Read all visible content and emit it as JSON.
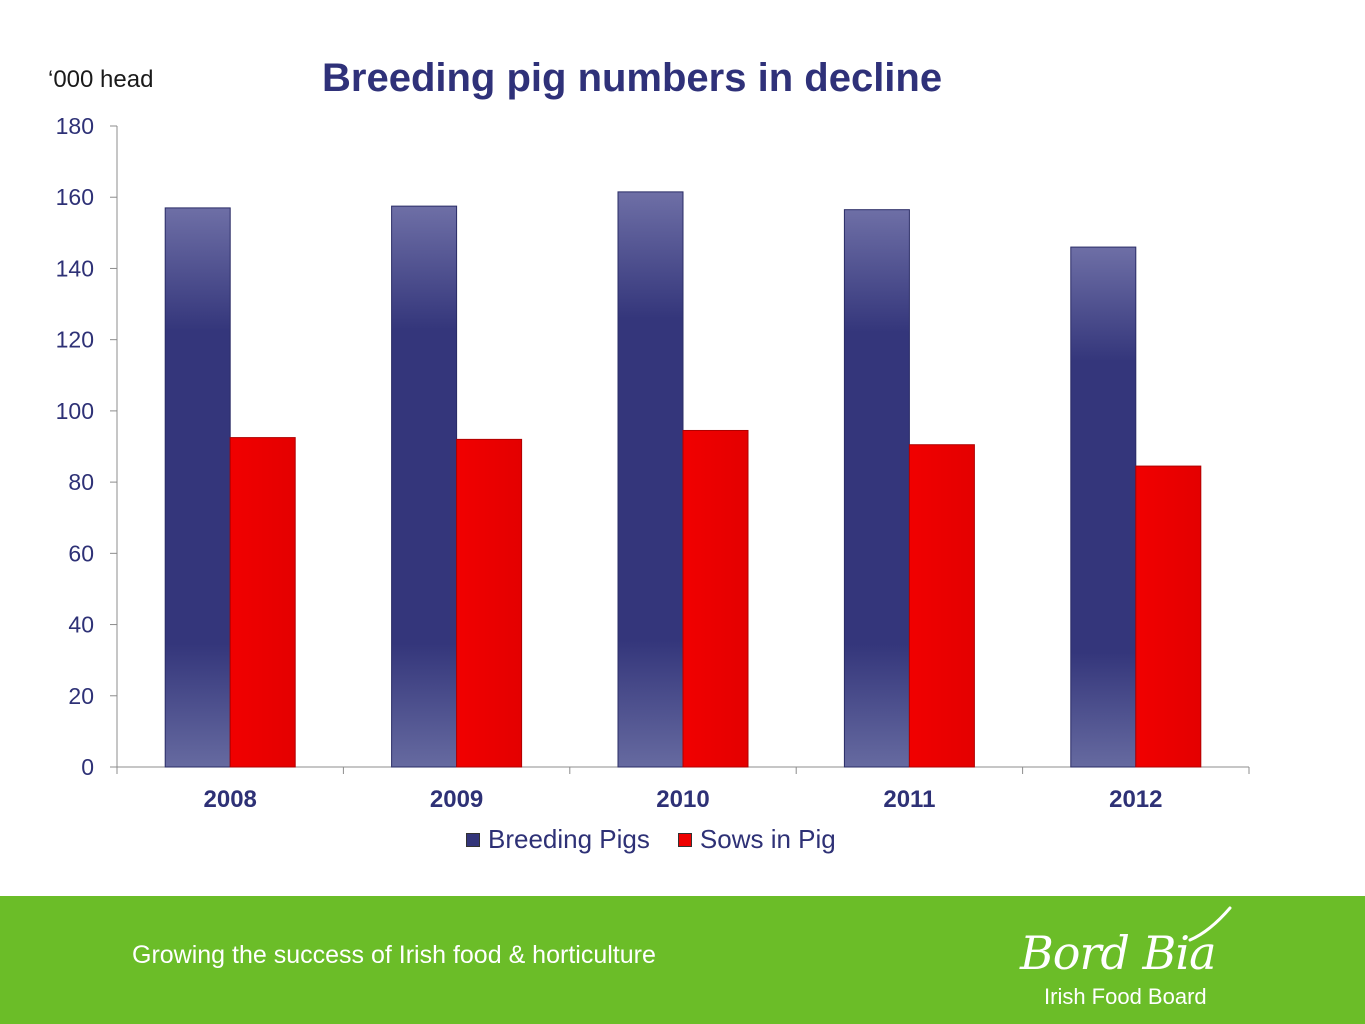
{
  "unit_label": "‘000 head",
  "footer": {
    "tagline": "Growing the success of Irish food & horticulture",
    "logo_main": "Bord Bia",
    "logo_sub": "Irish Food Board"
  },
  "colors": {
    "breeding": "#33357a",
    "sows": "#ee0000",
    "footer_bg": "#6bbd28",
    "title": "#2f3179"
  },
  "chart_data": {
    "type": "bar",
    "title": "Breeding pig numbers in decline",
    "ylabel": "‘000 head",
    "categories": [
      "2008",
      "2009",
      "2010",
      "2011",
      "2012"
    ],
    "series": [
      {
        "name": "Breeding Pigs",
        "values": [
          157,
          157.5,
          161.5,
          156.5,
          146
        ]
      },
      {
        "name": "Sows in Pig",
        "values": [
          92.5,
          92,
          94.5,
          90.5,
          84.5
        ]
      }
    ],
    "ylim": [
      0,
      180
    ],
    "yticks": [
      "0",
      "20",
      "40",
      "60",
      "80",
      "100",
      "120",
      "140",
      "160",
      "180"
    ],
    "grid": false,
    "legend": "bottom"
  }
}
